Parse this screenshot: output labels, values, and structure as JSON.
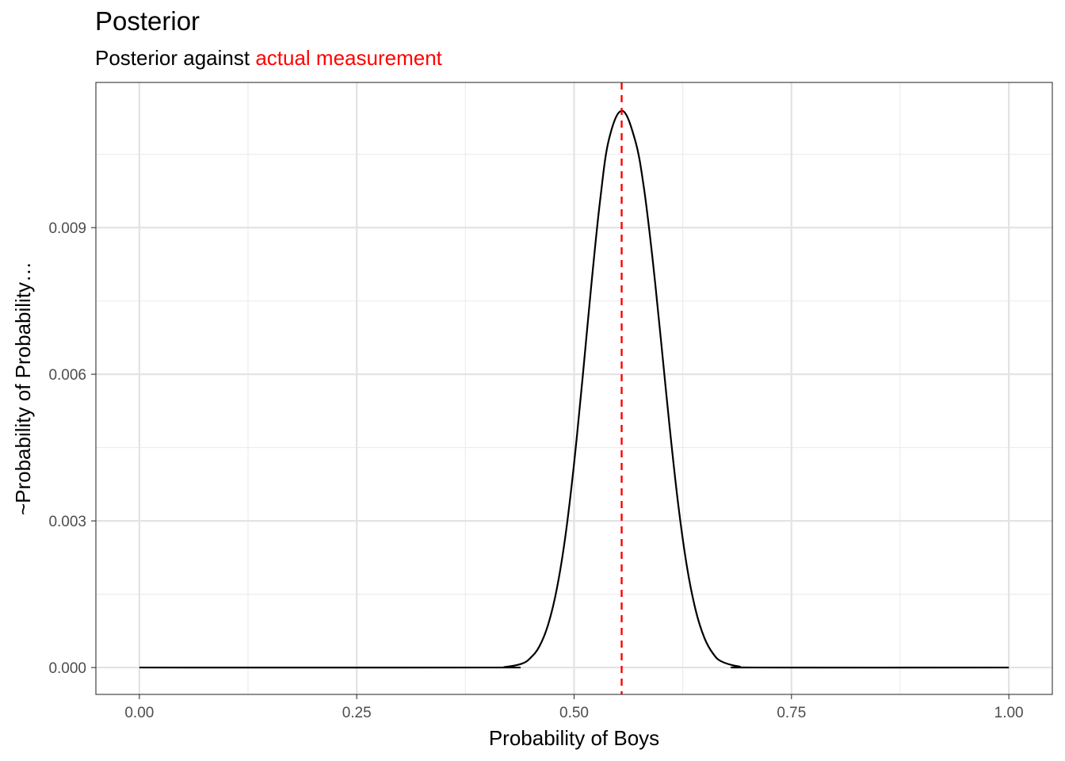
{
  "chart_data": {
    "type": "line",
    "title": "Posterior",
    "subtitle_prefix": "Posterior against ",
    "subtitle_highlight": "actual measurement",
    "xlabel": "Probability of Boys",
    "ylabel": "~Probability of Probability…",
    "xlim": [
      -0.05,
      1.05
    ],
    "ylim": [
      -0.00055,
      0.01197
    ],
    "x_ticks": [
      0.0,
      0.25,
      0.5,
      0.75,
      1.0
    ],
    "x_tick_labels": [
      "0.00",
      "0.25",
      "0.50",
      "0.75",
      "1.00"
    ],
    "y_ticks": [
      0.0,
      0.003,
      0.006,
      0.009
    ],
    "y_tick_labels": [
      "0.000",
      "0.003",
      "0.006",
      "0.009"
    ],
    "grid": true,
    "series": [
      {
        "color": "#000000",
        "x": [
          0.0,
          0.4,
          0.42,
          0.44,
          0.45,
          0.46,
          0.47,
          0.48,
          0.49,
          0.5,
          0.51,
          0.52,
          0.53,
          0.54,
          0.555,
          0.57,
          0.58,
          0.59,
          0.6,
          0.61,
          0.62,
          0.63,
          0.64,
          0.65,
          0.66,
          0.67,
          0.69,
          0.71,
          1.0
        ],
        "y": [
          0.0,
          0.0,
          1e-05,
          8e-05,
          0.0002,
          0.00043,
          0.00087,
          0.0016,
          0.00269,
          0.00418,
          0.00597,
          0.00786,
          0.00957,
          0.0108,
          0.01139,
          0.0108,
          0.00985,
          0.0084,
          0.00668,
          0.0049,
          0.0033,
          0.00204,
          0.00116,
          0.0006,
          0.00028,
          0.00012,
          2e-05,
          0.0,
          0.0
        ]
      }
    ],
    "reference_line": {
      "x": 0.5547,
      "color": "#ff0000",
      "style": "dashed"
    }
  }
}
